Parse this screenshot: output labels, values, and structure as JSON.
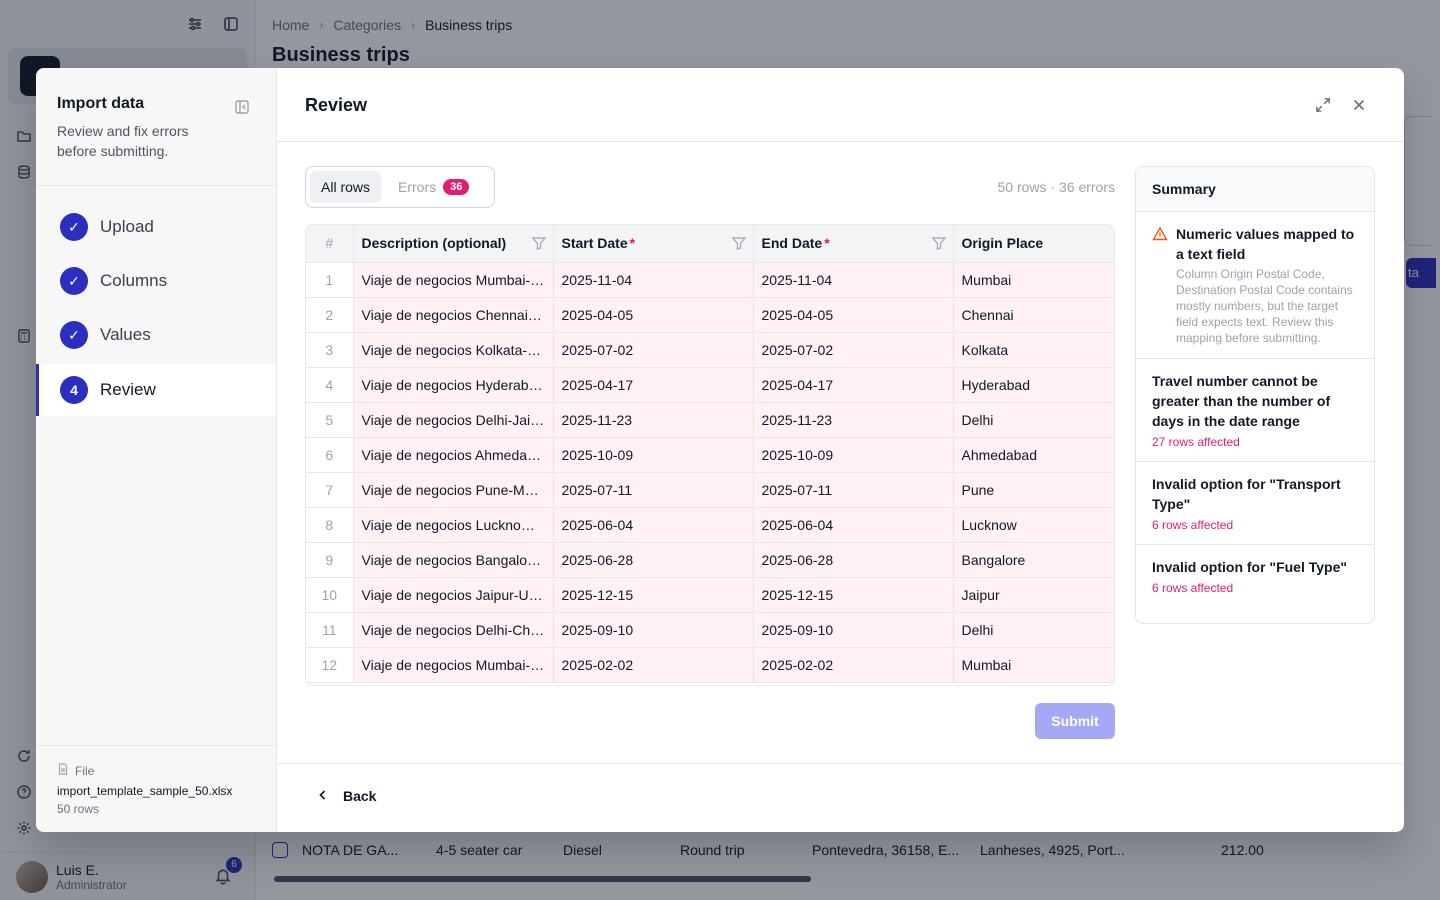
{
  "background": {
    "breadcrumb": [
      "Home",
      "Categories",
      "Business trips"
    ],
    "page_title": "Business trips",
    "bg_button_fragment": "ta",
    "bg_trip_fragment": "trip",
    "bottom_row": [
      "NOTA DE GA...",
      "4-5 seater car",
      "Diesel",
      "Round trip",
      "Pontevedra, 36158, E...",
      "Lanheses, 4925, Port...",
      "212.00"
    ],
    "user": {
      "name": "Luis E.",
      "role": "Administrator",
      "notifications": "6"
    }
  },
  "import": {
    "title": "Import data",
    "subtitle": "Review and fix errors before submitting.",
    "steps": [
      {
        "label": "Upload",
        "marker": "✓"
      },
      {
        "label": "Columns",
        "marker": "✓"
      },
      {
        "label": "Values",
        "marker": "✓"
      },
      {
        "label": "Review",
        "marker": "4"
      }
    ],
    "file": {
      "label": "File",
      "name": "import_template_sample_50.xlsx",
      "rows": "50 rows"
    }
  },
  "review": {
    "title": "Review",
    "tabs": {
      "all": "All rows",
      "errors": "Errors",
      "errors_count": "36"
    },
    "counts": "50 rows · 36 errors",
    "columns": [
      "#",
      "Description (optional)",
      "Start Date",
      "End Date",
      "Origin Place"
    ],
    "required_mark": "*",
    "rows": [
      [
        "1",
        "Viaje de negocios Mumbai-Pune",
        "2025-11-04",
        "2025-11-04",
        "Mumbai"
      ],
      [
        "2",
        "Viaje de negocios Chennai-Bangalore",
        "2025-04-05",
        "2025-04-05",
        "Chennai"
      ],
      [
        "3",
        "Viaje de negocios Kolkata-Patna",
        "2025-07-02",
        "2025-07-02",
        "Kolkata"
      ],
      [
        "4",
        "Viaje de negocios Hyderabad-Vijayawada",
        "2025-04-17",
        "2025-04-17",
        "Hyderabad"
      ],
      [
        "5",
        "Viaje de negocios Delhi-Jaipur",
        "2025-11-23",
        "2025-11-23",
        "Delhi"
      ],
      [
        "6",
        "Viaje de negocios Ahmedabad-Surat",
        "2025-10-09",
        "2025-10-09",
        "Ahmedabad"
      ],
      [
        "7",
        "Viaje de negocios Pune-Mumbai",
        "2025-07-11",
        "2025-07-11",
        "Pune"
      ],
      [
        "8",
        "Viaje de negocios Lucknow-Kanpur",
        "2025-06-04",
        "2025-06-04",
        "Lucknow"
      ],
      [
        "9",
        "Viaje de negocios Bangalore-Mysore",
        "2025-06-28",
        "2025-06-28",
        "Bangalore"
      ],
      [
        "10",
        "Viaje de negocios Jaipur-Udaipur",
        "2025-12-15",
        "2025-12-15",
        "Jaipur"
      ],
      [
        "11",
        "Viaje de negocios Delhi-Chandigarh",
        "2025-09-10",
        "2025-09-10",
        "Delhi"
      ],
      [
        "12",
        "Viaje de negocios Mumbai-Nashik",
        "2025-02-02",
        "2025-02-02",
        "Mumbai"
      ]
    ],
    "submit": "Submit",
    "back": "Back"
  },
  "summary": {
    "title": "Summary",
    "warning": {
      "title": "Numeric values mapped to a text field",
      "description": "Column Origin Postal Code, Destination Postal Code contains mostly numbers, but the target field expects text. Review this mapping before submitting."
    },
    "items": [
      {
        "title": "Travel number cannot be greater than the number of days in the date range",
        "affected": "27 rows affected"
      },
      {
        "title": "Invalid option for \"Transport Type\"",
        "affected": "6 rows affected"
      },
      {
        "title": "Invalid option for \"Fuel Type\"",
        "affected": "6 rows affected"
      }
    ]
  },
  "colors": {
    "accent": "#2b2fbf",
    "error": "#e11d74",
    "warning": "#ea580c",
    "error_row_bg": "#fff1f4"
  }
}
